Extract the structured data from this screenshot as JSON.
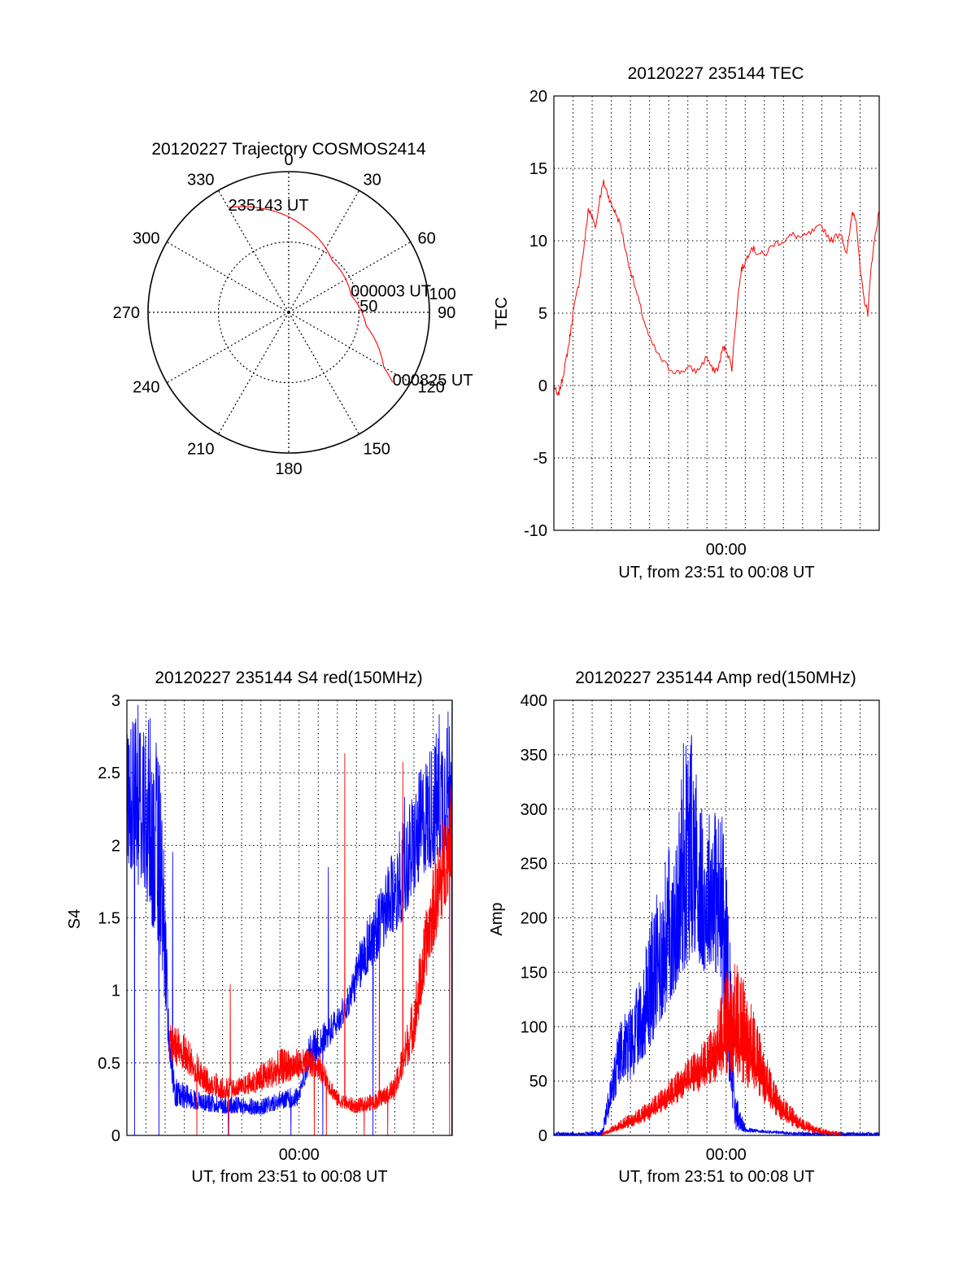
{
  "chart_data": [
    {
      "type": "polar",
      "title": "20120227 Trajectory COSMOS2414",
      "angle_labels": [
        "0",
        "30",
        "60",
        "90",
        "120",
        "150",
        "180",
        "210",
        "240",
        "270",
        "300",
        "330"
      ],
      "radius_labels": [
        "50",
        "100"
      ],
      "grid": true,
      "series": [
        {
          "color": "#ff0000",
          "points": [
            {
              "az": 330,
              "r": 86
            },
            {
              "az": 346,
              "r": 76
            },
            {
              "az": 10,
              "r": 62
            },
            {
              "az": 40,
              "r": 48
            },
            {
              "az": 75,
              "r": 46
            },
            {
              "az": 100,
              "r": 56
            },
            {
              "az": 120,
              "r": 78
            },
            {
              "az": 124,
              "r": 89
            }
          ]
        }
      ],
      "annotations": [
        {
          "text": "235143 UT",
          "az": 330,
          "r": 86
        },
        {
          "text": "000003 UT",
          "az": 73,
          "r": 46
        },
        {
          "text": "000825 UT",
          "az": 124,
          "r": 89
        }
      ]
    },
    {
      "type": "line",
      "title": "20120227 235144 TEC",
      "xlabel": "UT, from 23:51 to 00:08 UT",
      "ylabel": "TEC",
      "xlim": [
        0,
        17
      ],
      "ylim": [
        -10,
        20
      ],
      "yticks": [
        "20",
        "15",
        "10",
        "5",
        "0",
        "-5",
        "-10"
      ],
      "xtick_labels": [
        {
          "x": 9,
          "label": "00:00"
        }
      ],
      "grid": true,
      "series": [
        {
          "color": "#ff0000",
          "x": [
            0,
            0.2,
            0.4,
            0.6,
            0.8,
            1.0,
            1.3,
            1.6,
            1.8,
            2.0,
            2.2,
            2.4,
            2.6,
            2.8,
            3.0,
            3.2,
            3.5,
            3.8,
            4.2,
            4.6,
            5.0,
            5.5,
            6.0,
            6.5,
            7.0,
            7.5,
            8.0,
            8.3,
            8.6,
            8.8,
            9.0,
            9.3,
            9.6,
            9.8,
            10.0,
            10.3,
            10.6,
            11.0,
            11.5,
            12.0,
            12.5,
            13.0,
            13.5,
            14.0,
            14.5,
            15.0,
            15.3,
            15.6,
            15.8,
            16.0,
            16.2,
            16.4,
            16.6,
            16.8,
            17.0
          ],
          "values": [
            0,
            -0.8,
            0.2,
            1.5,
            3,
            5,
            7,
            9.8,
            12.2,
            11.6,
            11.0,
            13.0,
            14.0,
            13.3,
            12.5,
            12.0,
            11.0,
            9.0,
            7.0,
            5.0,
            3.2,
            2.0,
            1.2,
            0.9,
            1.2,
            1.0,
            2.0,
            1.0,
            1.2,
            2.5,
            2.6,
            1.2,
            6.0,
            8.0,
            8.5,
            9.6,
            9.2,
            9.0,
            9.8,
            10.0,
            10.4,
            10.2,
            10.6,
            11.0,
            10.0,
            10.6,
            9.0,
            12.0,
            11.5,
            8.0,
            6.0,
            5.0,
            8.5,
            10.5,
            12.0
          ]
        }
      ]
    },
    {
      "type": "line",
      "title": "20120227 235144 S4 red(150MHz)",
      "xlabel": "UT, from 23:51 to 00:08 UT",
      "ylabel": "S4",
      "xlim": [
        0,
        17
      ],
      "ylim": [
        0,
        3
      ],
      "yticks": [
        "3",
        "2.5",
        "2",
        "1.5",
        "1",
        "0.5",
        "0"
      ],
      "xtick_labels": [
        {
          "x": 9,
          "label": "00:00"
        }
      ],
      "grid": true,
      "series": [
        {
          "color": "#0000ff",
          "shape": [
            [
              0,
              1.9,
              3.0
            ],
            [
              1.0,
              1.6,
              3.0
            ],
            [
              1.8,
              1.2,
              2.6
            ],
            [
              2.2,
              0.55,
              0.8
            ],
            [
              2.5,
              0.2,
              0.4
            ],
            [
              3.5,
              0.18,
              0.32
            ],
            [
              5.0,
              0.15,
              0.28
            ],
            [
              7.0,
              0.14,
              0.25
            ],
            [
              8.0,
              0.18,
              0.3
            ],
            [
              9.0,
              0.2,
              0.35
            ],
            [
              9.5,
              0.45,
              0.7
            ],
            [
              10.5,
              0.6,
              0.8
            ],
            [
              11.5,
              0.8,
              1.0
            ],
            [
              12.5,
              1.1,
              1.5
            ],
            [
              13.5,
              1.3,
              1.8
            ],
            [
              14.5,
              1.5,
              2.2
            ],
            [
              15.5,
              1.8,
              2.6
            ],
            [
              16.5,
              1.9,
              2.9
            ],
            [
              17.0,
              2.0,
              3.0
            ]
          ]
        },
        {
          "color": "#ff0000",
          "shape": [
            [
              2.2,
              0.5,
              0.8
            ],
            [
              3.0,
              0.45,
              0.7
            ],
            [
              4.0,
              0.3,
              0.5
            ],
            [
              5.0,
              0.25,
              0.4
            ],
            [
              6.0,
              0.28,
              0.4
            ],
            [
              7.0,
              0.3,
              0.5
            ],
            [
              8.0,
              0.35,
              0.6
            ],
            [
              9.0,
              0.4,
              0.6
            ],
            [
              10.0,
              0.4,
              0.6
            ],
            [
              11.0,
              0.2,
              0.3
            ],
            [
              12.0,
              0.15,
              0.25
            ],
            [
              13.0,
              0.18,
              0.3
            ],
            [
              14.0,
              0.25,
              0.4
            ],
            [
              15.0,
              0.6,
              1.0
            ],
            [
              15.8,
              1.2,
              1.7
            ],
            [
              16.5,
              1.5,
              2.2
            ],
            [
              17.0,
              1.8,
              2.5
            ]
          ]
        }
      ]
    },
    {
      "type": "line",
      "title": "20120227 235144 Amp red(150MHz)",
      "xlabel": "UT, from 23:51 to 00:08 UT",
      "ylabel": "Amp",
      "xlim": [
        0,
        17
      ],
      "ylim": [
        0,
        400
      ],
      "yticks": [
        "400",
        "350",
        "300",
        "250",
        "200",
        "150",
        "100",
        "50",
        "0"
      ],
      "xtick_labels": [
        {
          "x": 9,
          "label": "00:00"
        }
      ],
      "grid": true,
      "series": [
        {
          "color": "#0000ff",
          "shape": [
            [
              0,
              0,
              3
            ],
            [
              1.5,
              0,
              3
            ],
            [
              2.5,
              0,
              5
            ],
            [
              3.0,
              20,
              60
            ],
            [
              3.5,
              50,
              110
            ],
            [
              4.0,
              50,
              120
            ],
            [
              4.6,
              70,
              150
            ],
            [
              5.0,
              80,
              200
            ],
            [
              5.5,
              100,
              230
            ],
            [
              6.0,
              120,
              270
            ],
            [
              6.3,
              130,
              250
            ],
            [
              6.8,
              150,
              380
            ],
            [
              7.3,
              170,
              370
            ],
            [
              7.8,
              150,
              290
            ],
            [
              8.3,
              160,
              310
            ],
            [
              8.8,
              120,
              300
            ],
            [
              9.2,
              40,
              200
            ],
            [
              9.5,
              5,
              40
            ],
            [
              10.0,
              3,
              8
            ],
            [
              11.0,
              2,
              5
            ],
            [
              12.0,
              1,
              4
            ],
            [
              13.0,
              0,
              3
            ],
            [
              17.0,
              0,
              3
            ]
          ]
        },
        {
          "color": "#ff0000",
          "shape": [
            [
              2.5,
              0,
              2
            ],
            [
              3.5,
              5,
              15
            ],
            [
              4.5,
              10,
              25
            ],
            [
              5.5,
              20,
              40
            ],
            [
              6.5,
              30,
              60
            ],
            [
              7.0,
              40,
              70
            ],
            [
              7.5,
              40,
              80
            ],
            [
              8.0,
              45,
              90
            ],
            [
              8.5,
              50,
              110
            ],
            [
              9.0,
              55,
              150
            ],
            [
              9.5,
              50,
              160
            ],
            [
              10.0,
              45,
              140
            ],
            [
              10.5,
              40,
              110
            ],
            [
              11.0,
              30,
              80
            ],
            [
              11.5,
              20,
              50
            ],
            [
              12.0,
              12,
              35
            ],
            [
              12.5,
              8,
              25
            ],
            [
              13.0,
              4,
              15
            ],
            [
              14.0,
              1,
              6
            ],
            [
              15.0,
              0,
              3
            ]
          ]
        }
      ]
    }
  ]
}
